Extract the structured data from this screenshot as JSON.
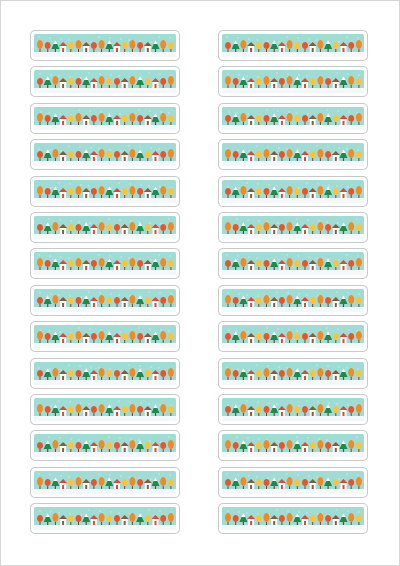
{
  "sheet": {
    "columns": 2,
    "rows": 14,
    "background_color": "#ffffff",
    "label_fill_color": "#9fdcd6",
    "label_border_color": "#c9c9c9",
    "artwork": "winter-village-banner"
  },
  "art": {
    "sky": "#9fdcd6",
    "snow": "#f4f8fb",
    "tree_green": "#1f8a4c",
    "tree_orange": "#f08a24",
    "tree_red": "#e4572e",
    "tree_yellow": "#f5c542",
    "house_wall": "#ffffff",
    "roof_red": "#d94a3a",
    "roof_brown": "#8a5a3c",
    "trunk": "#6b4a2f"
  }
}
